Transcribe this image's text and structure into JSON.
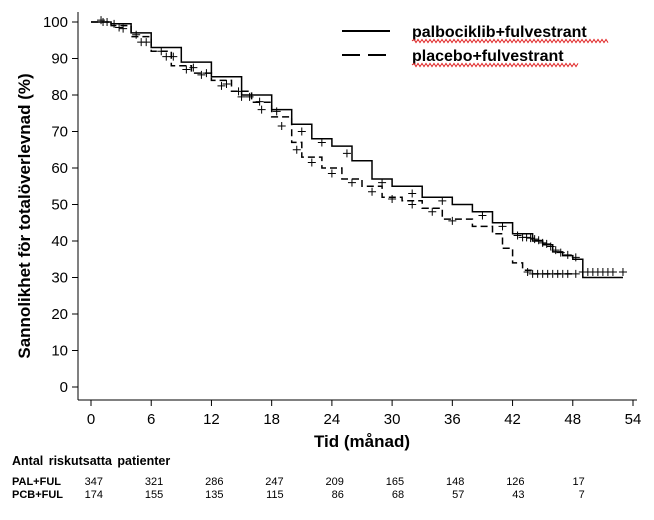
{
  "chart_data": {
    "type": "line",
    "title": "",
    "xlabel": "Tid (månad)",
    "ylabel": "Sannolikhet för totalöverlevnad (%)",
    "xlim": [
      0,
      54
    ],
    "ylim": [
      0,
      100
    ],
    "xticks": [
      0,
      6,
      12,
      18,
      24,
      30,
      36,
      42,
      48,
      54
    ],
    "yticks": [
      0,
      10,
      20,
      30,
      40,
      50,
      60,
      70,
      80,
      90,
      100
    ],
    "grid": false,
    "legend_position": "top-right",
    "series": [
      {
        "name": "palbociklib+fulvestrant",
        "style": "solid",
        "color": "#000000",
        "points": [
          [
            0,
            100
          ],
          [
            2,
            99.5
          ],
          [
            4,
            97
          ],
          [
            6,
            93
          ],
          [
            9,
            89
          ],
          [
            12,
            85
          ],
          [
            15,
            80
          ],
          [
            18,
            76
          ],
          [
            20,
            72
          ],
          [
            22,
            68
          ],
          [
            24,
            66
          ],
          [
            26,
            62
          ],
          [
            28,
            57
          ],
          [
            30,
            55
          ],
          [
            33,
            52
          ],
          [
            36,
            50
          ],
          [
            38,
            48
          ],
          [
            40,
            45
          ],
          [
            42,
            42
          ],
          [
            44,
            40
          ],
          [
            45,
            39
          ],
          [
            46,
            37
          ],
          [
            47,
            36
          ],
          [
            48,
            35
          ],
          [
            49,
            30
          ],
          [
            53,
            30
          ]
        ],
        "censored": [
          [
            1,
            100.5
          ],
          [
            1.6,
            100
          ],
          [
            2.3,
            99.5
          ],
          [
            3.2,
            98.2
          ],
          [
            4.5,
            96.5
          ],
          [
            5.5,
            94.5
          ],
          [
            7,
            92
          ],
          [
            8.2,
            90.5
          ],
          [
            10.2,
            87.5
          ],
          [
            11.5,
            86
          ],
          [
            13.5,
            83
          ],
          [
            14.7,
            81
          ],
          [
            15.8,
            79.5
          ],
          [
            16.8,
            78.2
          ],
          [
            18.5,
            75.5
          ],
          [
            21,
            70
          ],
          [
            23,
            67
          ],
          [
            25.5,
            64
          ],
          [
            29,
            56
          ],
          [
            32,
            53
          ],
          [
            35,
            51
          ],
          [
            39,
            47
          ],
          [
            41,
            44
          ],
          [
            42.5,
            41.5
          ],
          [
            43,
            41
          ],
          [
            43.4,
            41
          ],
          [
            43.8,
            40.8
          ],
          [
            44.2,
            40.5
          ],
          [
            44.6,
            40.2
          ],
          [
            45,
            39.5
          ],
          [
            45.4,
            39.2
          ],
          [
            45.8,
            38.5
          ],
          [
            46.3,
            37.5
          ],
          [
            46.8,
            36.8
          ],
          [
            47.5,
            36.2
          ],
          [
            48.3,
            35.5
          ]
        ]
      },
      {
        "name": "placebo+fulvestrant",
        "style": "dashed",
        "color": "#000000",
        "points": [
          [
            0,
            100
          ],
          [
            2,
            99
          ],
          [
            4,
            96
          ],
          [
            6,
            92
          ],
          [
            8,
            88
          ],
          [
            10,
            86
          ],
          [
            12,
            84
          ],
          [
            14,
            81
          ],
          [
            16,
            78
          ],
          [
            18,
            74
          ],
          [
            20,
            67
          ],
          [
            21,
            63
          ],
          [
            23,
            60
          ],
          [
            25,
            57
          ],
          [
            27,
            55
          ],
          [
            29,
            52
          ],
          [
            31,
            51
          ],
          [
            33,
            49
          ],
          [
            35,
            46
          ],
          [
            38,
            44
          ],
          [
            40,
            42
          ],
          [
            41,
            38
          ],
          [
            42,
            34
          ],
          [
            43,
            32
          ],
          [
            44,
            31
          ],
          [
            45,
            31
          ],
          [
            48,
            31
          ]
        ],
        "censored": [
          [
            1.2,
            100
          ],
          [
            2.8,
            98.5
          ],
          [
            5,
            94.5
          ],
          [
            7.5,
            90.5
          ],
          [
            9.5,
            87
          ],
          [
            11,
            85.5
          ],
          [
            13,
            82.5
          ],
          [
            15,
            79.5
          ],
          [
            17,
            76
          ],
          [
            19,
            71.5
          ],
          [
            20.5,
            65
          ],
          [
            22,
            61.5
          ],
          [
            24,
            58.5
          ],
          [
            26,
            56
          ],
          [
            28,
            53.5
          ],
          [
            30,
            51.5
          ],
          [
            32,
            50
          ],
          [
            34,
            48
          ],
          [
            36,
            45.5
          ],
          [
            43.5,
            31.5
          ],
          [
            44,
            31
          ],
          [
            44.5,
            31
          ],
          [
            45,
            31
          ],
          [
            45.5,
            31
          ],
          [
            46,
            31
          ],
          [
            46.5,
            31
          ],
          [
            47,
            31
          ],
          [
            47.5,
            31
          ],
          [
            48.3,
            31
          ],
          [
            49,
            31.5
          ],
          [
            49.5,
            31.5
          ],
          [
            50,
            31.5
          ],
          [
            50.5,
            31.5
          ],
          [
            51,
            31.5
          ],
          [
            51.5,
            31.5
          ],
          [
            52,
            31.5
          ],
          [
            53,
            31.5
          ]
        ]
      }
    ]
  },
  "risk_table": {
    "title": "Antal  riskutsatta  patienter",
    "times": [
      0,
      6,
      12,
      18,
      24,
      30,
      36,
      42,
      48
    ],
    "rows": [
      {
        "label": "PAL+FUL",
        "values": [
          "347",
          "321",
          "286",
          "247",
          "209",
          "165",
          "148",
          "126",
          "17"
        ]
      },
      {
        "label": "PCB+FUL",
        "values": [
          "174",
          "155",
          "135",
          "115",
          "86",
          "68",
          "57",
          "43",
          "7"
        ]
      }
    ]
  }
}
